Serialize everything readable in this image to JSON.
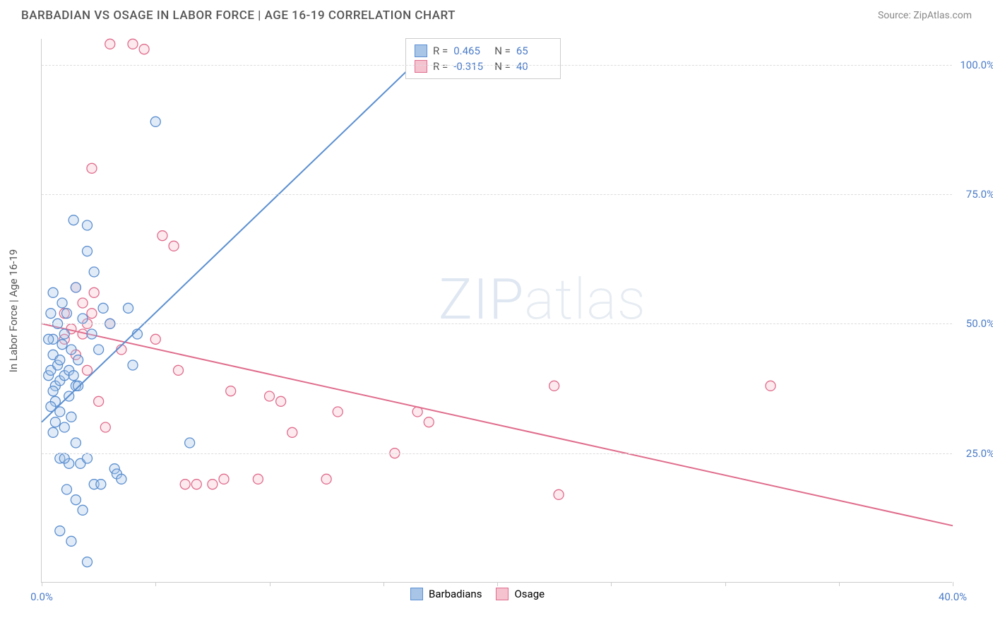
{
  "header": {
    "title": "BARBADIAN VS OSAGE IN LABOR FORCE | AGE 16-19 CORRELATION CHART",
    "source": "Source: ZipAtlas.com"
  },
  "chart": {
    "type": "scatter",
    "y_axis_label": "In Labor Force | Age 16-19",
    "xlim": [
      0,
      40
    ],
    "ylim": [
      0,
      105
    ],
    "x_ticks": [
      0,
      5,
      10,
      15,
      20,
      25,
      30,
      35,
      40
    ],
    "x_tick_labels": {
      "0": "0.0%",
      "40": "40.0%"
    },
    "y_ticks": [
      25,
      50,
      75,
      100
    ],
    "y_tick_labels": {
      "25": "25.0%",
      "50": "50.0%",
      "75": "75.0%",
      "100": "100.0%"
    },
    "grid_color": "#dddddd",
    "axis_color": "#cccccc",
    "background_color": "#ffffff",
    "marker_radius": 7,
    "marker_stroke_width": 1.3,
    "marker_fill_opacity": 0.35,
    "line_width": 2,
    "watermark": "ZIPatlas"
  },
  "legend_stats": [
    {
      "swatch_fill": "#a8c5e8",
      "swatch_stroke": "#5b8fd0",
      "r_label": "R =",
      "r_value": "0.465",
      "n_label": "N =",
      "n_value": "65"
    },
    {
      "swatch_fill": "#f5c2d0",
      "swatch_stroke": "#e06c8c",
      "r_label": "R =",
      "r_value": "-0.315",
      "n_label": "N =",
      "n_value": "40"
    }
  ],
  "legend_series": [
    {
      "swatch_fill": "#a8c5e8",
      "swatch_stroke": "#5b8fd0",
      "label": "Barbadians"
    },
    {
      "swatch_fill": "#f5c2d0",
      "swatch_stroke": "#e06c8c",
      "label": "Osage"
    }
  ],
  "series": {
    "barbadians": {
      "color_stroke": "#5b8fd0",
      "color_fill": "#a8c5e8",
      "trend": {
        "x1": 0,
        "y1": 31,
        "x2": 17.5,
        "y2": 105
      },
      "points": [
        [
          0.3,
          40
        ],
        [
          0.4,
          41
        ],
        [
          0.5,
          44
        ],
        [
          0.5,
          47
        ],
        [
          0.6,
          38
        ],
        [
          0.6,
          35
        ],
        [
          0.7,
          42
        ],
        [
          0.7,
          50
        ],
        [
          0.8,
          39
        ],
        [
          0.8,
          43
        ],
        [
          0.9,
          46
        ],
        [
          0.9,
          54
        ],
        [
          1.0,
          40
        ],
        [
          1.0,
          48
        ],
        [
          1.1,
          52
        ],
        [
          1.2,
          41
        ],
        [
          1.2,
          36
        ],
        [
          1.3,
          45
        ],
        [
          1.4,
          70
        ],
        [
          1.5,
          57
        ],
        [
          1.5,
          38
        ],
        [
          1.6,
          43
        ],
        [
          1.8,
          51
        ],
        [
          2.0,
          64
        ],
        [
          2.0,
          69
        ],
        [
          2.2,
          48
        ],
        [
          2.3,
          60
        ],
        [
          2.5,
          45
        ],
        [
          2.7,
          53
        ],
        [
          3.0,
          50
        ],
        [
          3.2,
          22
        ],
        [
          3.3,
          21
        ],
        [
          3.5,
          20
        ],
        [
          3.8,
          53
        ],
        [
          0.8,
          24
        ],
        [
          1.2,
          23
        ],
        [
          1.7,
          23
        ],
        [
          1.5,
          27
        ],
        [
          1.0,
          24
        ],
        [
          2.0,
          24
        ],
        [
          2.3,
          19
        ],
        [
          2.6,
          19
        ],
        [
          1.1,
          18
        ],
        [
          1.5,
          16
        ],
        [
          1.8,
          14
        ],
        [
          0.8,
          10
        ],
        [
          1.3,
          8
        ],
        [
          2.0,
          4
        ],
        [
          0.5,
          37
        ],
        [
          0.5,
          29
        ],
        [
          0.4,
          34
        ],
        [
          0.6,
          31
        ],
        [
          0.8,
          33
        ],
        [
          1.0,
          30
        ],
        [
          1.3,
          32
        ],
        [
          1.4,
          40
        ],
        [
          1.6,
          38
        ],
        [
          6.5,
          27
        ],
        [
          5.0,
          89
        ],
        [
          4.0,
          42
        ],
        [
          4.2,
          48
        ],
        [
          16.5,
          103
        ],
        [
          0.3,
          47
        ],
        [
          0.4,
          52
        ],
        [
          0.5,
          56
        ]
      ]
    },
    "osage": {
      "color_stroke": "#e06c8c",
      "color_fill": "#f5c2d0",
      "trend": {
        "x1": 0,
        "y1": 50,
        "x2": 40,
        "y2": 11
      },
      "points": [
        [
          1.0,
          47
        ],
        [
          1.3,
          49
        ],
        [
          1.5,
          44
        ],
        [
          1.8,
          48
        ],
        [
          2.0,
          41
        ],
        [
          2.2,
          52
        ],
        [
          2.5,
          35
        ],
        [
          2.8,
          30
        ],
        [
          3.0,
          104
        ],
        [
          3.5,
          45
        ],
        [
          4.0,
          104
        ],
        [
          4.5,
          103
        ],
        [
          5.0,
          47
        ],
        [
          5.3,
          67
        ],
        [
          5.8,
          65
        ],
        [
          6.0,
          41
        ],
        [
          6.3,
          19
        ],
        [
          6.8,
          19
        ],
        [
          7.5,
          19
        ],
        [
          8.0,
          20
        ],
        [
          8.3,
          37
        ],
        [
          9.5,
          20
        ],
        [
          10.0,
          36
        ],
        [
          10.5,
          35
        ],
        [
          11.0,
          29
        ],
        [
          12.5,
          20
        ],
        [
          13.0,
          33
        ],
        [
          15.5,
          25
        ],
        [
          16.5,
          33
        ],
        [
          17.0,
          31
        ],
        [
          22.5,
          38
        ],
        [
          22.7,
          17
        ],
        [
          32.0,
          38
        ],
        [
          2.2,
          80
        ],
        [
          1.5,
          57
        ],
        [
          2.0,
          50
        ],
        [
          1.0,
          52
        ],
        [
          1.8,
          54
        ],
        [
          2.3,
          56
        ],
        [
          3.0,
          50
        ]
      ]
    }
  }
}
